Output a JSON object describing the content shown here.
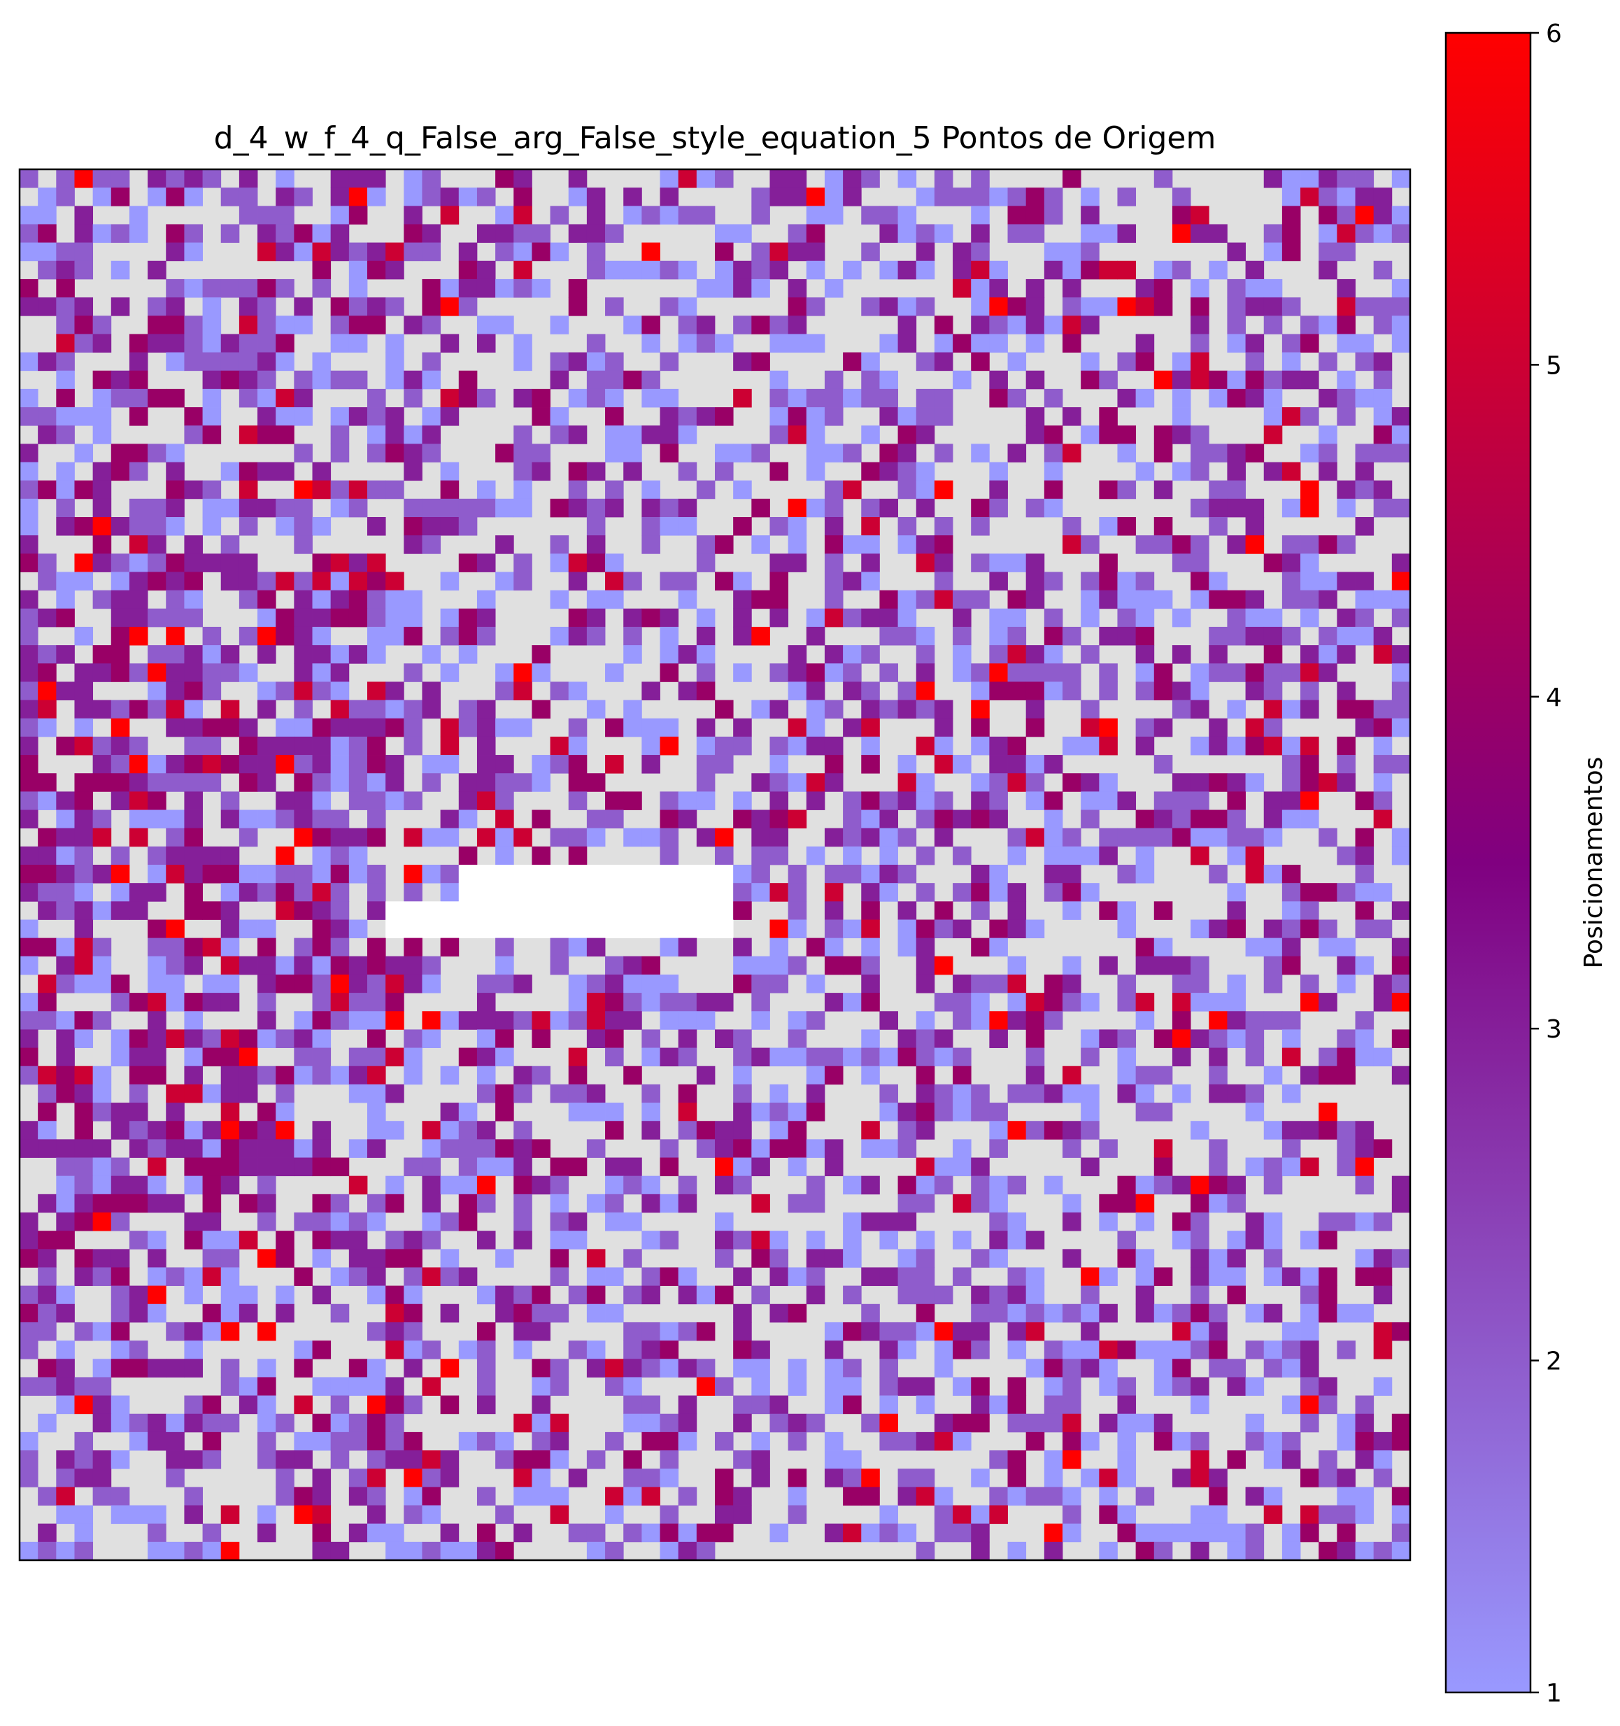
{
  "chart_data": {
    "type": "heatmap",
    "title": "d_4_w_f_4_q_False_arg_False_style_equation_5 Pontos de Origem",
    "xlabel": "",
    "ylabel": "",
    "grid": false,
    "axes_ticks_visible": false,
    "grid_size": [
      76,
      76
    ],
    "colorbar": {
      "label": "Posicionamentos",
      "range": [
        1,
        6
      ],
      "ticks": [
        "1",
        "2",
        "3",
        "4",
        "5",
        "6"
      ],
      "position": "right",
      "colormap": [
        "#9999ff",
        "#800080",
        "#ff0000"
      ]
    },
    "zero_color": "#e0e0e0",
    "nan_color": "#ffffff",
    "empty_region": {
      "col_start": 20,
      "col_end": 40,
      "row_start": 38,
      "row_end": 44
    },
    "value_distribution": {
      "0": 0.45,
      "1": 0.16,
      "2": 0.16,
      "3": 0.12,
      "4": 0.07,
      "5": 0.025,
      "6": 0.015
    },
    "notes": "Dense grid of integer placement counts (0-6); higher counts concentrated along left third; blank region near center-left."
  }
}
